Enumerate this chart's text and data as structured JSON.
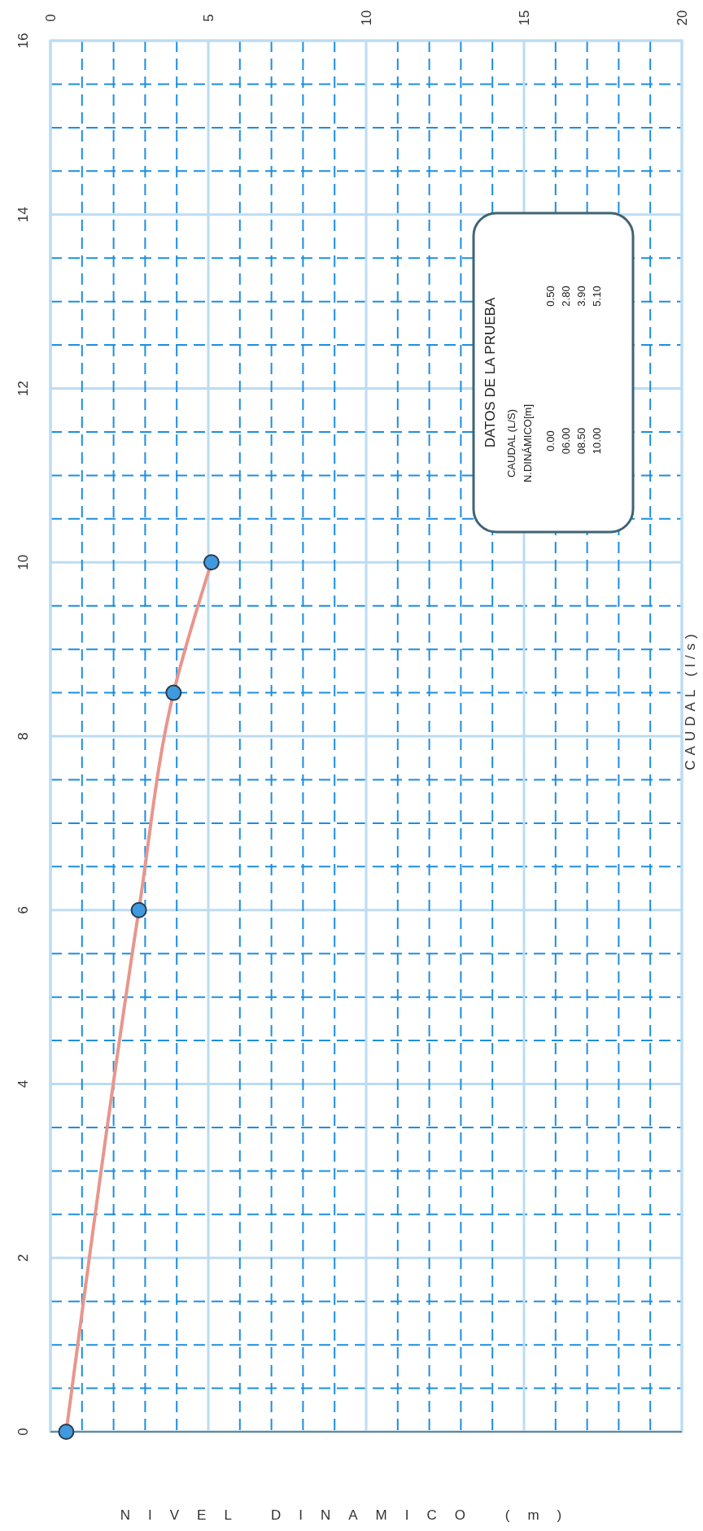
{
  "chart_data": {
    "type": "line",
    "ylabel": "CAUDAL (l/s)",
    "x": [
      0.5,
      2.8,
      3.9,
      5.1
    ],
    "series": [
      {
        "color": "#e8968c",
        "values": [
          0,
          6,
          8.5,
          10
        ]
      }
    ],
    "marker": "circle",
    "line_style": "solid",
    "grid": true,
    "xlim": [
      0,
      20
    ],
    "ylim": [
      0,
      16
    ],
    "yticks": [
      0,
      {
        "value": 0.5,
        "label": null
      },
      {
        "value": 1,
        "label": null
      },
      {
        "value": 1.5,
        "label": null
      },
      2,
      {
        "value": 2.5,
        "label": null
      },
      {
        "value": 3,
        "label": null
      },
      {
        "value": 3.5,
        "label": null
      },
      4,
      {
        "value": 4.5,
        "label": null
      },
      {
        "value": 5,
        "label": null
      },
      {
        "value": 5.5,
        "label": null
      },
      6,
      {
        "value": 6.5,
        "label": null
      },
      {
        "value": 7,
        "label": null
      },
      {
        "value": 7.5,
        "label": null
      },
      8,
      {
        "value": 8.5,
        "label": null
      },
      {
        "value": 9,
        "label": null
      },
      {
        "value": 9.5,
        "label": null
      },
      10,
      {
        "value": 10.5,
        "label": null
      },
      {
        "value": 11,
        "label": null
      },
      {
        "value": 11.5,
        "label": null
      },
      12,
      {
        "value": 12.5,
        "label": null
      },
      {
        "value": 13,
        "label": null
      },
      {
        "value": 13.5,
        "label": null
      },
      14,
      {
        "value": 14.5,
        "label": null
      },
      {
        "value": 15,
        "label": null
      },
      {
        "value": 15.5,
        "label": null
      },
      16
    ],
    "xticks": [
      0,
      {
        "value": 1,
        "label": null
      },
      {
        "value": 2,
        "label": null
      },
      {
        "value": 3,
        "label": null
      },
      {
        "value": 4,
        "label": null
      },
      5,
      {
        "value": 6,
        "label": null
      },
      {
        "value": 7,
        "label": null
      },
      {
        "value": 8,
        "label": null
      },
      {
        "value": 9,
        "label": null
      },
      10,
      {
        "value": 11,
        "label": null
      },
      {
        "value": 12,
        "label": null
      },
      {
        "value": 13,
        "label": null
      },
      {
        "value": 14,
        "label": null
      },
      15,
      {
        "value": 16,
        "label": null
      },
      {
        "value": 17,
        "label": null
      },
      {
        "value": 18,
        "label": null
      },
      {
        "value": 19,
        "label": null
      },
      20
    ],
    "annotations": [
      "DATOS DE  LA  PRUEBA",
      "CAUDAL (L/S)",
      "N.DINÁMICO[m]",
      "0.00",
      "06.00",
      "08.50",
      "10.00",
      "0.50",
      "2.80",
      "3.90",
      "5.10",
      "NIVEL DINAMICO (m)"
    ]
  }
}
